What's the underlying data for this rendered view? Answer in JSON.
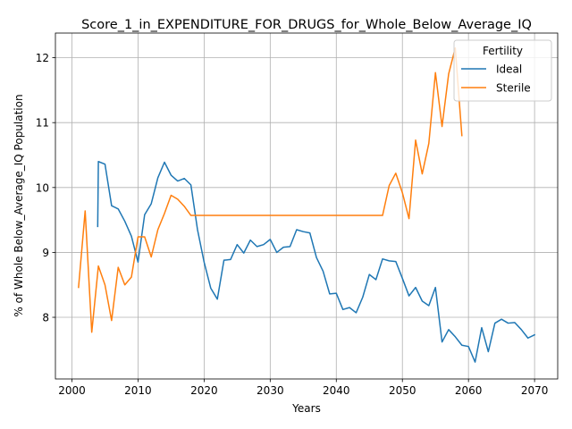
{
  "chart_data": {
    "type": "line",
    "title": "Score_1_in_EXPENDITURE_FOR_DRUGS_for_Whole_Below_Average_IQ",
    "xlabel": "Years",
    "ylabel": "% of Whole Below_Average_IQ Population",
    "xlim": [
      1997.5,
      2073.5
    ],
    "ylim": [
      7.05,
      12.38
    ],
    "xticks": [
      2000,
      2010,
      2020,
      2030,
      2040,
      2050,
      2060,
      2070
    ],
    "yticks": [
      8,
      9,
      10,
      11,
      12
    ],
    "grid": true,
    "legend": {
      "title": "Fertility",
      "placement": "top-right"
    },
    "series": [
      {
        "name": "Ideal",
        "color": "#1f77b4",
        "x": [
          2003.9,
          2004,
          2005,
          2006,
          2007,
          2008,
          2009,
          2010,
          2011,
          2012,
          2013,
          2014,
          2015,
          2016,
          2017,
          2018,
          2019,
          2020,
          2021,
          2022,
          2023,
          2024,
          2025,
          2026,
          2027,
          2028,
          2029,
          2030,
          2031,
          2032,
          2033,
          2034,
          2035,
          2036,
          2037,
          2038,
          2039,
          2040,
          2041,
          2042,
          2043,
          2044,
          2045,
          2046,
          2047,
          2048,
          2049,
          2050,
          2051,
          2052,
          2053,
          2054,
          2055,
          2056,
          2057,
          2058,
          2059,
          2060,
          2061,
          2062,
          2063,
          2064,
          2065,
          2066,
          2067,
          2068,
          2069,
          2070
        ],
        "y": [
          9.4,
          10.4,
          10.36,
          9.72,
          9.67,
          9.48,
          9.25,
          8.85,
          9.58,
          9.75,
          10.15,
          10.39,
          10.19,
          10.1,
          10.14,
          10.04,
          9.35,
          8.85,
          8.45,
          8.28,
          8.88,
          8.89,
          9.12,
          8.99,
          9.19,
          9.09,
          9.12,
          9.2,
          9.0,
          9.08,
          9.09,
          9.35,
          9.32,
          9.3,
          8.92,
          8.71,
          8.36,
          8.37,
          8.12,
          8.15,
          8.07,
          8.31,
          8.66,
          8.58,
          8.9,
          8.87,
          8.86,
          8.6,
          8.33,
          8.46,
          8.25,
          8.18,
          8.46,
          7.62,
          7.81,
          7.7,
          7.57,
          7.55,
          7.31,
          7.84,
          7.47,
          7.91,
          7.97,
          7.91,
          7.92,
          7.81,
          7.68,
          7.73
        ]
      },
      {
        "name": "Sterile",
        "color": "#ff7f0e",
        "x": [
          2001,
          2002,
          2003,
          2004,
          2005,
          2006,
          2007,
          2008,
          2009,
          2010,
          2011,
          2012,
          2013,
          2014,
          2015,
          2016,
          2017,
          2018,
          2019,
          2020,
          2025,
          2030,
          2035,
          2040,
          2045,
          2047,
          2048,
          2049,
          2050,
          2051,
          2052,
          2053,
          2054,
          2055,
          2056,
          2057,
          2058,
          2059
        ],
        "y": [
          8.46,
          9.64,
          7.77,
          8.79,
          8.5,
          7.95,
          8.77,
          8.5,
          8.62,
          9.24,
          9.24,
          8.93,
          9.35,
          9.6,
          9.88,
          9.82,
          9.71,
          9.57,
          9.57,
          9.57,
          9.57,
          9.57,
          9.57,
          9.57,
          9.57,
          9.57,
          10.03,
          10.22,
          9.92,
          9.52,
          10.73,
          10.21,
          10.68,
          11.77,
          10.94,
          11.75,
          12.15,
          10.8
        ]
      }
    ]
  }
}
